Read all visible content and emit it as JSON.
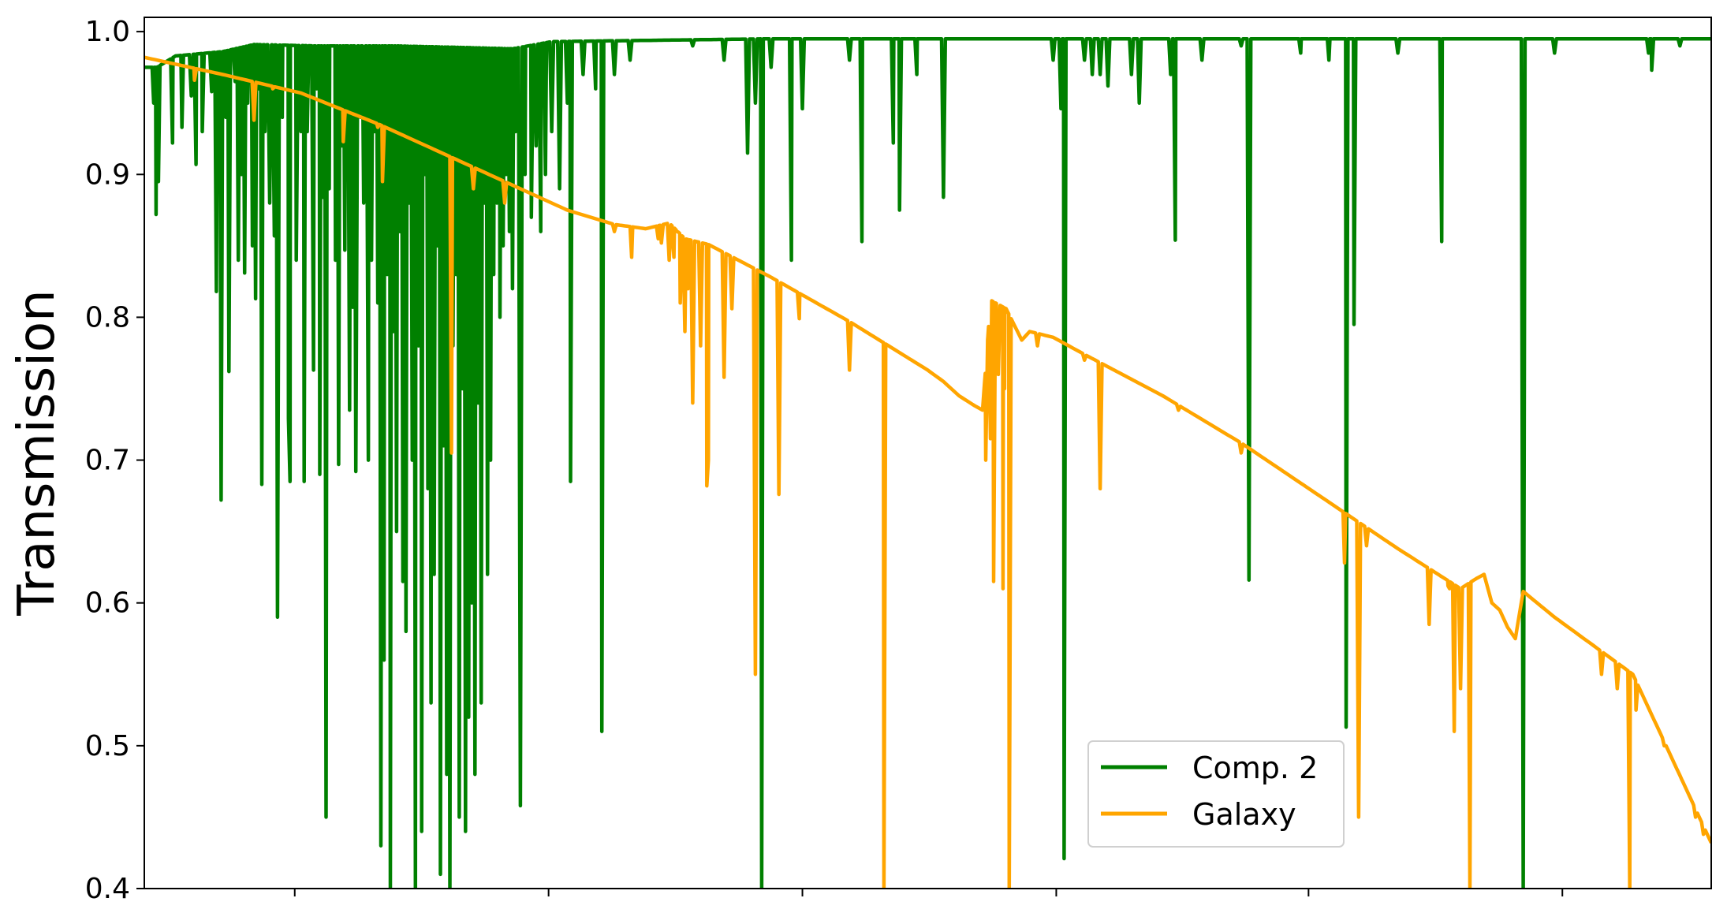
{
  "chart_data": {
    "type": "line",
    "title": "",
    "xlabel": "",
    "ylabel": "Transmission",
    "ylim": [
      0.4,
      1.01
    ],
    "yticks": [
      0.4,
      0.5,
      0.6,
      0.7,
      0.8,
      0.9,
      1.0
    ],
    "ytick_labels": [
      "0.4",
      "0.5",
      "0.6",
      "0.7",
      "0.8",
      "0.9",
      "1.0"
    ],
    "xlim": [
      0,
      1
    ],
    "xticks": [
      0.096,
      0.258,
      0.42,
      0.582,
      0.743,
      0.905
    ],
    "xtick_labels": [
      "",
      "",
      "",
      "",
      "",
      ""
    ],
    "grid": false,
    "legend_position": "lower-right",
    "series": [
      {
        "name": "Comp. 2",
        "color": "#008000",
        "continuum": [
          [
            0.0,
            0.975
          ],
          [
            0.008,
            0.975
          ],
          [
            0.02,
            0.983
          ],
          [
            0.05,
            0.986
          ],
          [
            0.07,
            0.991
          ],
          [
            0.11,
            0.99
          ],
          [
            0.16,
            0.99
          ],
          [
            0.2,
            0.989
          ],
          [
            0.235,
            0.988
          ],
          [
            0.26,
            0.993
          ],
          [
            0.4,
            0.995
          ],
          [
            0.6,
            0.995
          ],
          [
            0.8,
            0.995
          ],
          [
            1.0,
            0.995
          ]
        ],
        "lines": [
          [
            0.006,
            0.95
          ],
          [
            0.0075,
            0.872
          ],
          [
            0.009,
            0.895
          ],
          [
            0.018,
            0.922
          ],
          [
            0.024,
            0.933
          ],
          [
            0.03,
            0.955
          ],
          [
            0.033,
            0.907
          ],
          [
            0.037,
            0.93
          ],
          [
            0.043,
            0.958
          ],
          [
            0.046,
            0.818
          ],
          [
            0.049,
            0.672
          ],
          [
            0.052,
            0.94
          ],
          [
            0.054,
            0.762
          ],
          [
            0.058,
            0.965
          ],
          [
            0.06,
            0.84
          ],
          [
            0.062,
            0.9
          ],
          [
            0.064,
            0.831
          ],
          [
            0.066,
            0.95
          ],
          [
            0.069,
            0.85
          ],
          [
            0.071,
            0.813
          ],
          [
            0.073,
            0.96
          ],
          [
            0.075,
            0.683
          ],
          [
            0.077,
            0.93
          ],
          [
            0.08,
            0.88
          ],
          [
            0.083,
            0.857
          ],
          [
            0.085,
            0.59
          ],
          [
            0.088,
            0.94
          ],
          [
            0.092,
            0.729
          ],
          [
            0.093,
            0.685
          ],
          [
            0.097,
            0.84
          ],
          [
            0.1,
            0.93
          ],
          [
            0.102,
            0.685
          ],
          [
            0.104,
            0.93
          ],
          [
            0.108,
            0.763
          ],
          [
            0.11,
            0.96
          ],
          [
            0.112,
            0.69
          ],
          [
            0.114,
            0.884
          ],
          [
            0.116,
            0.45
          ],
          [
            0.118,
            0.89
          ],
          [
            0.122,
            0.84
          ],
          [
            0.124,
            0.697
          ],
          [
            0.126,
            0.92
          ],
          [
            0.128,
            0.847
          ],
          [
            0.131,
            0.735
          ],
          [
            0.133,
            0.807
          ],
          [
            0.135,
            0.692
          ],
          [
            0.138,
            0.94
          ],
          [
            0.14,
            0.88
          ],
          [
            0.143,
            0.7
          ],
          [
            0.145,
            0.84
          ],
          [
            0.147,
            0.93
          ],
          [
            0.149,
            0.81
          ],
          [
            0.151,
            0.43
          ],
          [
            0.153,
            0.56
          ],
          [
            0.155,
            0.83
          ],
          [
            0.157,
            0.4
          ],
          [
            0.159,
            0.79
          ],
          [
            0.161,
            0.65
          ],
          [
            0.163,
            0.86
          ],
          [
            0.165,
            0.615
          ],
          [
            0.167,
            0.58
          ],
          [
            0.169,
            0.88
          ],
          [
            0.171,
            0.7
          ],
          [
            0.173,
            0.4
          ],
          [
            0.175,
            0.78
          ],
          [
            0.177,
            0.44
          ],
          [
            0.179,
            0.9
          ],
          [
            0.181,
            0.68
          ],
          [
            0.183,
            0.53
          ],
          [
            0.185,
            0.62
          ],
          [
            0.187,
            0.85
          ],
          [
            0.189,
            0.41
          ],
          [
            0.191,
            0.71
          ],
          [
            0.193,
            0.48
          ],
          [
            0.195,
            0.4
          ],
          [
            0.197,
            0.78
          ],
          [
            0.199,
            0.83
          ],
          [
            0.201,
            0.45
          ],
          [
            0.203,
            0.75
          ],
          [
            0.205,
            0.44
          ],
          [
            0.207,
            0.52
          ],
          [
            0.209,
            0.6
          ],
          [
            0.211,
            0.48
          ],
          [
            0.213,
            0.74
          ],
          [
            0.215,
            0.53
          ],
          [
            0.217,
            0.88
          ],
          [
            0.219,
            0.62
          ],
          [
            0.221,
            0.7
          ],
          [
            0.223,
            0.83
          ],
          [
            0.225,
            0.88
          ],
          [
            0.227,
            0.8
          ],
          [
            0.229,
            0.85
          ],
          [
            0.231,
            0.9
          ],
          [
            0.233,
            0.86
          ],
          [
            0.235,
            0.82
          ],
          [
            0.237,
            0.93
          ],
          [
            0.24,
            0.458
          ],
          [
            0.243,
            0.9
          ],
          [
            0.247,
            0.87
          ],
          [
            0.25,
            0.92
          ],
          [
            0.253,
            0.86
          ],
          [
            0.256,
            0.9
          ],
          [
            0.26,
            0.93
          ],
          [
            0.265,
            0.89
          ],
          [
            0.27,
            0.95
          ],
          [
            0.272,
            0.685
          ],
          [
            0.28,
            0.97
          ],
          [
            0.288,
            0.96
          ],
          [
            0.292,
            0.51
          ],
          [
            0.3,
            0.97
          ],
          [
            0.31,
            0.98
          ],
          [
            0.35,
            0.99
          ],
          [
            0.37,
            0.98
          ],
          [
            0.385,
            0.915
          ],
          [
            0.39,
            0.95
          ],
          [
            0.394,
            0.4
          ],
          [
            0.4,
            0.975
          ],
          [
            0.413,
            0.84
          ],
          [
            0.42,
            0.946
          ],
          [
            0.45,
            0.98
          ],
          [
            0.458,
            0.853
          ],
          [
            0.478,
            0.922
          ],
          [
            0.482,
            0.875
          ],
          [
            0.493,
            0.97
          ],
          [
            0.51,
            0.884
          ],
          [
            0.58,
            0.98
          ],
          [
            0.585,
            0.946
          ],
          [
            0.587,
            0.421
          ],
          [
            0.6,
            0.98
          ],
          [
            0.605,
            0.97
          ],
          [
            0.61,
            0.97
          ],
          [
            0.615,
            0.962
          ],
          [
            0.63,
            0.97
          ],
          [
            0.635,
            0.95
          ],
          [
            0.655,
            0.97
          ],
          [
            0.658,
            0.854
          ],
          [
            0.675,
            0.98
          ],
          [
            0.7,
            0.99
          ],
          [
            0.705,
            0.616
          ],
          [
            0.738,
            0.985
          ],
          [
            0.756,
            0.98
          ],
          [
            0.767,
            0.513
          ],
          [
            0.772,
            0.795
          ],
          [
            0.8,
            0.985
          ],
          [
            0.828,
            0.853
          ],
          [
            0.88,
            0.4
          ],
          [
            0.9,
            0.985
          ],
          [
            0.96,
            0.985
          ],
          [
            0.962,
            0.973
          ],
          [
            0.98,
            0.99
          ]
        ]
      },
      {
        "name": "Galaxy",
        "color": "#FFA500",
        "continuum": [
          [
            0.0,
            0.982
          ],
          [
            0.05,
            0.97
          ],
          [
            0.1,
            0.955
          ],
          [
            0.15,
            0.935
          ],
          [
            0.2,
            0.91
          ],
          [
            0.24,
            0.895
          ],
          [
            0.27,
            0.88
          ],
          [
            0.3,
            0.865
          ],
          [
            0.33,
            0.862
          ],
          [
            0.36,
            0.855
          ],
          [
            0.4,
            0.833
          ],
          [
            0.45,
            0.8
          ],
          [
            0.5,
            0.765
          ],
          [
            0.505,
            0.753
          ],
          [
            0.5,
            0.77
          ],
          [
            0.51,
            0.75
          ],
          [
            0.5,
            0.76
          ],
          [
            0.48,
            0.78
          ],
          [
            0.5,
            0.77
          ],
          [
            0.5,
            0.773
          ],
          [
            0.5,
            0.775
          ],
          [
            0.5,
            0.77
          ],
          [
            0.5,
            0.762
          ],
          [
            0.5,
            0.763
          ],
          [
            0.5,
            0.77
          ]
        ],
        "continuum2": [
          [
            0.0,
            0.982
          ],
          [
            0.05,
            0.97
          ],
          [
            0.1,
            0.957
          ],
          [
            0.15,
            0.935
          ],
          [
            0.2,
            0.91
          ],
          [
            0.24,
            0.89
          ],
          [
            0.27,
            0.875
          ],
          [
            0.3,
            0.865
          ],
          [
            0.32,
            0.862
          ],
          [
            0.335,
            0.866
          ],
          [
            0.345,
            0.855
          ],
          [
            0.36,
            0.851
          ],
          [
            0.4,
            0.828
          ],
          [
            0.45,
            0.797
          ],
          [
            0.5,
            0.763
          ],
          [
            0.51,
            0.755
          ],
          [
            0.52,
            0.745
          ],
          [
            0.53,
            0.738
          ],
          [
            0.535,
            0.735
          ],
          [
            0.54,
            0.812
          ],
          [
            0.55,
            0.806
          ],
          [
            0.555,
            0.795
          ],
          [
            0.56,
            0.784
          ],
          [
            0.565,
            0.79
          ],
          [
            0.58,
            0.786
          ],
          [
            0.6,
            0.774
          ],
          [
            0.65,
            0.745
          ],
          [
            0.7,
            0.712
          ],
          [
            0.75,
            0.675
          ],
          [
            0.8,
            0.638
          ],
          [
            0.84,
            0.61
          ],
          [
            0.85,
            0.617
          ],
          [
            0.855,
            0.62
          ],
          [
            0.86,
            0.6
          ],
          [
            0.865,
            0.595
          ],
          [
            0.87,
            0.583
          ],
          [
            0.875,
            0.575
          ],
          [
            0.88,
            0.608
          ],
          [
            0.9,
            0.59
          ],
          [
            0.95,
            0.55
          ],
          [
            1.0,
            0.432
          ]
        ],
        "lines": [
          [
            0.032,
            0.966
          ],
          [
            0.07,
            0.938
          ],
          [
            0.082,
            0.96
          ],
          [
            0.127,
            0.923
          ],
          [
            0.149,
            0.933
          ],
          [
            0.152,
            0.895
          ],
          [
            0.196,
            0.705
          ],
          [
            0.21,
            0.89
          ],
          [
            0.23,
            0.88
          ],
          [
            0.27,
            0.875
          ],
          [
            0.29,
            0.87
          ],
          [
            0.3,
            0.86
          ],
          [
            0.311,
            0.842
          ],
          [
            0.328,
            0.855
          ],
          [
            0.33,
            0.852
          ],
          [
            0.335,
            0.84
          ],
          [
            0.338,
            0.842
          ],
          [
            0.33,
            0.855
          ],
          [
            0.34,
            0.86
          ],
          [
            0.342,
            0.81
          ],
          [
            0.345,
            0.79
          ],
          [
            0.347,
            0.82
          ],
          [
            0.35,
            0.84
          ],
          [
            0.355,
            0.78
          ],
          [
            0.35,
            0.74
          ],
          [
            0.359,
            0.682
          ],
          [
            0.36,
            0.7
          ],
          [
            0.37,
            0.758
          ],
          [
            0.375,
            0.806
          ],
          [
            0.39,
            0.55
          ],
          [
            0.405,
            0.676
          ],
          [
            0.418,
            0.799
          ],
          [
            0.45,
            0.763
          ],
          [
            0.472,
            0.4
          ],
          [
            0.535,
            0.735
          ],
          [
            0.537,
            0.7
          ],
          [
            0.54,
            0.715
          ],
          [
            0.542,
            0.615
          ],
          [
            0.545,
            0.76
          ],
          [
            0.548,
            0.61
          ],
          [
            0.549,
            0.75
          ],
          [
            0.552,
            0.4
          ],
          [
            0.556,
            0.797
          ],
          [
            0.57,
            0.78
          ],
          [
            0.6,
            0.77
          ],
          [
            0.61,
            0.68
          ],
          [
            0.61,
            0.75
          ],
          [
            0.62,
            0.765
          ],
          [
            0.66,
            0.735
          ],
          [
            0.68,
            0.73
          ],
          [
            0.7,
            0.705
          ],
          [
            0.73,
            0.69
          ],
          [
            0.755,
            0.675
          ],
          [
            0.766,
            0.628
          ],
          [
            0.775,
            0.45
          ],
          [
            0.78,
            0.64
          ],
          [
            0.8,
            0.645
          ],
          [
            0.82,
            0.585
          ],
          [
            0.826,
            0.64
          ],
          [
            0.832,
            0.612
          ],
          [
            0.833,
            0.61
          ],
          [
            0.836,
            0.51
          ],
          [
            0.84,
            0.54
          ],
          [
            0.846,
            0.4
          ],
          [
            0.86,
            0.6
          ],
          [
            0.9,
            0.592
          ],
          [
            0.93,
            0.55
          ],
          [
            0.94,
            0.54
          ],
          [
            0.948,
            0.4
          ],
          [
            0.952,
            0.525
          ],
          [
            0.97,
            0.5
          ],
          [
            0.98,
            0.49
          ],
          [
            0.99,
            0.45
          ],
          [
            0.995,
            0.438
          ]
        ]
      }
    ]
  }
}
